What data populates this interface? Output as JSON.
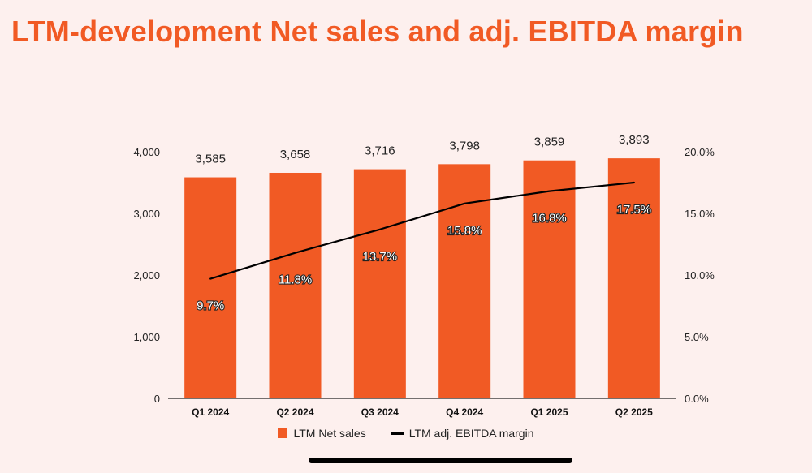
{
  "page": {
    "title": "LTM-development Net sales and adj. EBITDA margin"
  },
  "colors": {
    "background": "#fdf0ee",
    "accent": "#f15a24",
    "bar": "#f15a24",
    "line": "#000000"
  },
  "chart_data": {
    "type": "bar",
    "title": "",
    "xlabel": "",
    "ylabel": "",
    "categories": [
      "Q1 2024",
      "Q2 2024",
      "Q3 2024",
      "Q4 2024",
      "Q1 2025",
      "Q2 2025"
    ],
    "series": [
      {
        "name": "LTM Net sales",
        "type": "bar",
        "axis": "left",
        "values": [
          3585,
          3658,
          3716,
          3798,
          3859,
          3893
        ],
        "labels": [
          "3,585",
          "3,658",
          "3,716",
          "3,798",
          "3,859",
          "3,893"
        ]
      },
      {
        "name": "LTM adj. EBITDA margin",
        "type": "line",
        "axis": "right",
        "values": [
          9.7,
          11.8,
          13.7,
          15.8,
          16.8,
          17.5
        ],
        "labels": [
          "9.7%",
          "11.8%",
          "13.7%",
          "15.8%",
          "16.8%",
          "17.5%"
        ]
      }
    ],
    "ylim": [
      0,
      4000
    ],
    "yticks": [
      "0",
      "1,000",
      "2,000",
      "3,000",
      "4,000"
    ],
    "y2lim": [
      0,
      20
    ],
    "y2ticks": [
      "0.0%",
      "5.0%",
      "10.0%",
      "15.0%",
      "20.0%"
    ],
    "grid": false,
    "legend": "bottom-center"
  }
}
